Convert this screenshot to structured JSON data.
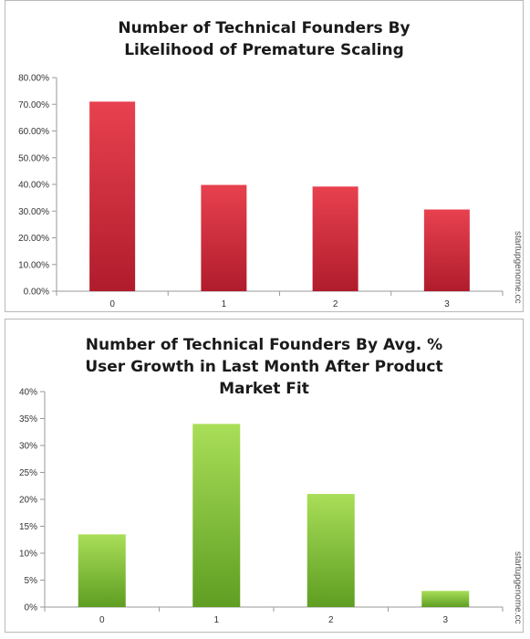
{
  "chart_data": [
    {
      "type": "bar",
      "title": "Number of Technical Founders By Likelihood of Premature Scaling",
      "categories": [
        "0",
        "1",
        "2",
        "3"
      ],
      "values": [
        71.0,
        39.8,
        39.2,
        30.6
      ],
      "ylim": [
        0,
        80
      ],
      "yticks": [
        "0.00%",
        "10.00%",
        "20.00%",
        "30.00%",
        "40.00%",
        "50.00%",
        "60.00%",
        "70.00%",
        "80.00%"
      ],
      "xlabel": "",
      "ylabel": "",
      "grid": false,
      "legend": "none",
      "bar_color_top": "#e8414f",
      "bar_color_bottom": "#b01c2c",
      "watermark": "startupgenome.cc"
    },
    {
      "type": "bar",
      "title": "Number of Technical Founders By Avg. % User Growth in Last Month After Product Market Fit",
      "categories": [
        "0",
        "1",
        "2",
        "3"
      ],
      "values": [
        13.5,
        34.0,
        21.0,
        3.0
      ],
      "ylim": [
        0,
        40
      ],
      "yticks": [
        "0%",
        "5%",
        "10%",
        "15%",
        "20%",
        "25%",
        "30%",
        "35%",
        "40%"
      ],
      "xlabel": "",
      "ylabel": "",
      "grid": false,
      "legend": "none",
      "bar_color_top": "#a9de58",
      "bar_color_bottom": "#5e9e22",
      "watermark": "startupgenome.cc"
    }
  ]
}
